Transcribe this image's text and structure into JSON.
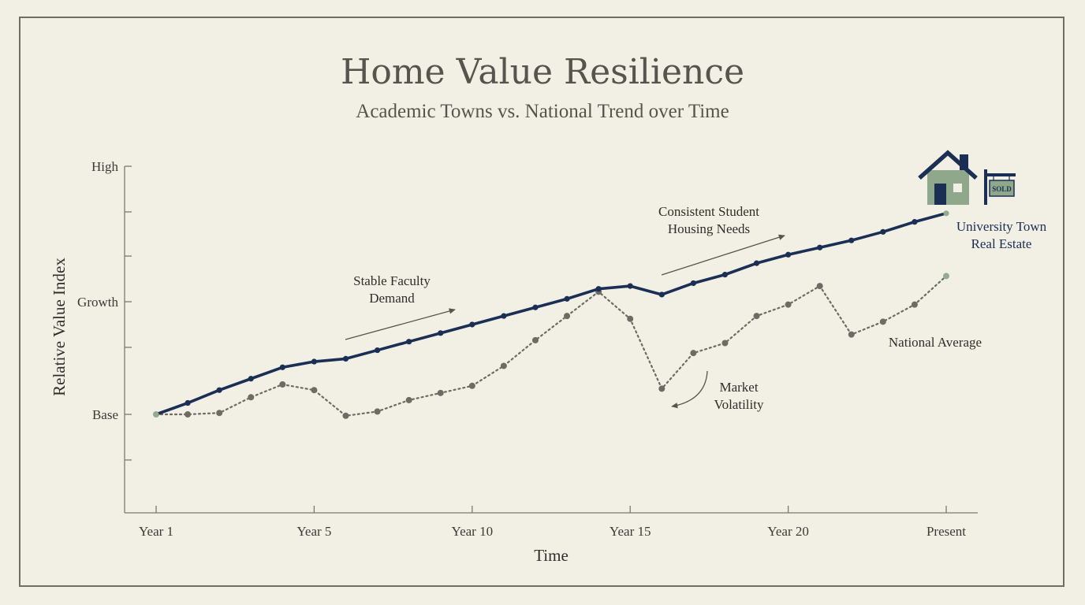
{
  "title": "Home Value Resilience",
  "subtitle": "Academic Towns vs. National Trend over Time",
  "chart_data": {
    "type": "line",
    "title": "Home Value Resilience",
    "subtitle": "Academic Towns vs. National Trend over Time",
    "xlabel": "Time",
    "ylabel": "Relative Value Index",
    "x": [
      1,
      2,
      3,
      4,
      5,
      6,
      7,
      8,
      9,
      10,
      11,
      12,
      13,
      14,
      15,
      16,
      17,
      18,
      19,
      20,
      21,
      22,
      23,
      24,
      25,
      26
    ],
    "xlim": [
      0,
      27
    ],
    "x_ticks": [
      {
        "x": 1,
        "label": "Year 1"
      },
      {
        "x": 6,
        "label": "Year 5"
      },
      {
        "x": 11,
        "label": "Year 10"
      },
      {
        "x": 16,
        "label": "Year 15"
      },
      {
        "x": 21,
        "label": "Year 20"
      },
      {
        "x": 26,
        "label": "Present"
      }
    ],
    "y_labeled_ticks": [
      {
        "y": 0,
        "label": "Base"
      },
      {
        "y": 0.79,
        "label": "Growth"
      },
      {
        "y": 1.74,
        "label": "High"
      }
    ],
    "y_minor_ticks": [
      -0.32,
      0.47,
      1.11,
      1.42
    ],
    "ylim": [
      -0.68,
      1.74
    ],
    "series": [
      {
        "name": "University Town Real Estate",
        "label": [
          "University Town",
          "Real Estate"
        ],
        "style": "solid",
        "color": "#1b2f55",
        "values": [
          0,
          0.08,
          0.17,
          0.25,
          0.33,
          0.37,
          0.39,
          0.45,
          0.51,
          0.57,
          0.63,
          0.69,
          0.75,
          0.81,
          0.88,
          0.9,
          0.84,
          0.92,
          0.98,
          1.06,
          1.12,
          1.17,
          1.22,
          1.28,
          1.35,
          1.41
        ]
      },
      {
        "name": "National Average",
        "label": [
          "National Average"
        ],
        "style": "dotted",
        "color": "#6c6c64",
        "values": [
          0,
          0,
          0.01,
          0.12,
          0.21,
          0.17,
          -0.01,
          0.02,
          0.1,
          0.15,
          0.2,
          0.34,
          0.52,
          0.69,
          0.86,
          0.67,
          0.18,
          0.43,
          0.5,
          0.69,
          0.77,
          0.9,
          0.56,
          0.65,
          0.77,
          0.97
        ]
      }
    ],
    "annotations": [
      {
        "text": [
          "Stable Faculty",
          "Demand"
        ]
      },
      {
        "text": [
          "Consistent Student",
          "Housing Needs"
        ]
      },
      {
        "text": [
          "Market",
          "Volatility"
        ]
      }
    ],
    "icon": {
      "name": "house-with-sold-sign-icon",
      "sign_text": "SOLD"
    },
    "colors": {
      "background": "#f2efe4",
      "town": "#1b2f55",
      "national": "#6c6c64",
      "axis": "#7a7a72",
      "house": "#8fa88c",
      "endpoint": "#93ab8e"
    },
    "grid": false,
    "legend": "none"
  }
}
